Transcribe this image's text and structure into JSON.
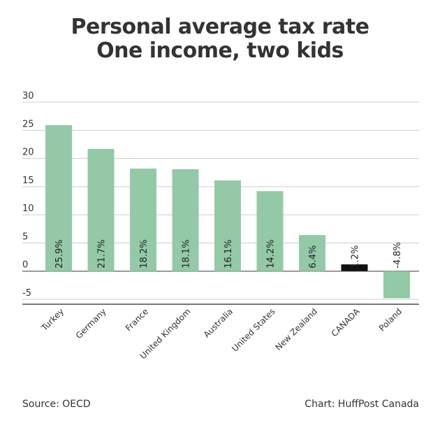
{
  "header": {
    "title_line1": "Personal average tax rate",
    "title_line2": "One income, two kids"
  },
  "footer": {
    "source": "Source: OECD",
    "credit": "Chart: HuffPost Canada"
  },
  "chart_data": {
    "type": "bar",
    "categories": [
      "Turkey",
      "Germany",
      "France",
      "United Kingdom",
      "Australia",
      "United States",
      "New Zealand",
      "CANADA",
      "Poland"
    ],
    "values": [
      25.9,
      21.7,
      18.2,
      18.1,
      16.1,
      14.2,
      6.4,
      1.2,
      -4.8
    ],
    "data_labels": [
      "25.9%",
      "21.7%",
      "18.2%",
      "18.1%",
      "16.1%",
      "14.2%",
      "6.4%",
      "1.2%",
      "-4.8%"
    ],
    "highlight_category": "CANADA",
    "ylim": [
      -5,
      30
    ],
    "yticks": [
      30,
      25,
      20,
      15,
      10,
      5,
      0,
      -5
    ],
    "grid": true,
    "xlabel": "",
    "ylabel": "",
    "colors": {
      "bar": "#93c9a6",
      "highlight": "#111111",
      "grid": "#cccccc",
      "axis": "#777777"
    }
  }
}
